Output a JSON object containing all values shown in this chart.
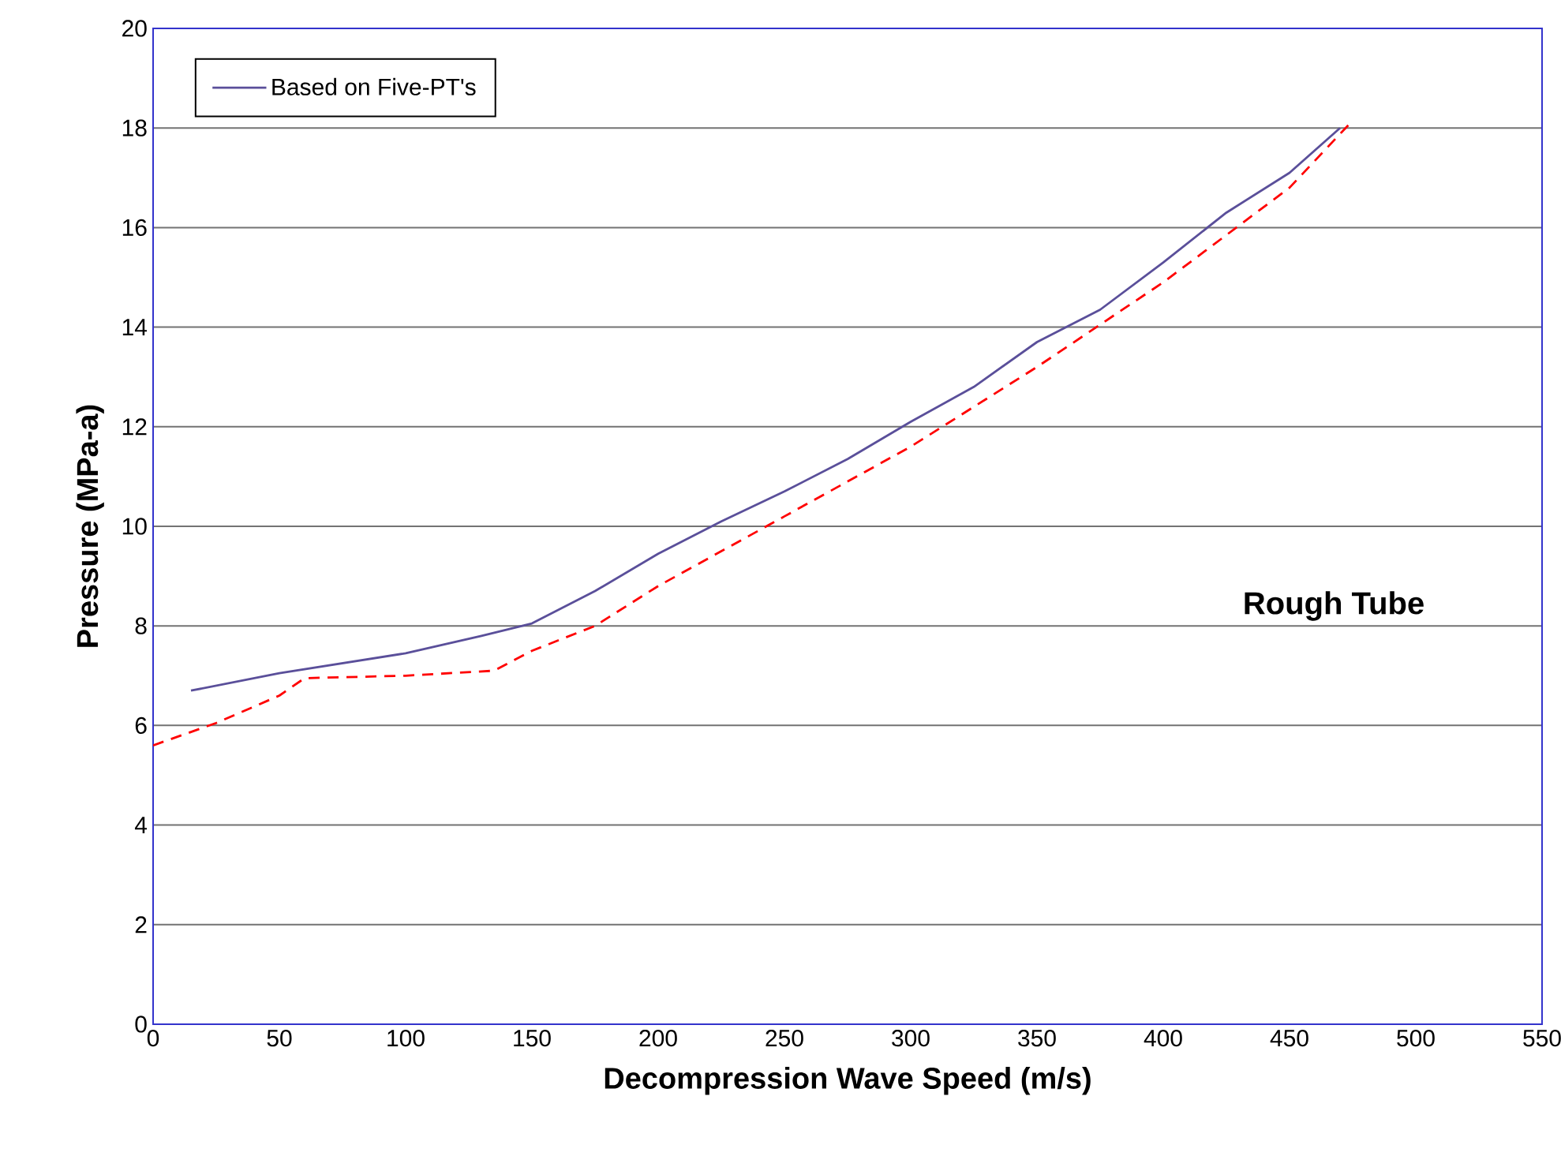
{
  "chart_data": {
    "type": "line",
    "xlabel": "Decompression Wave Speed  (m/s)",
    "ylabel": "Pressure (MPa-a)",
    "annotations": [
      "Rough Tube"
    ],
    "xlim": [
      0,
      550
    ],
    "xticks": [
      0,
      50,
      100,
      150,
      200,
      250,
      300,
      350,
      400,
      450,
      500,
      550
    ],
    "ylim": [
      0,
      20
    ],
    "yticks": [
      0,
      2,
      4,
      6,
      8,
      10,
      12,
      14,
      16,
      18,
      20
    ],
    "grid": "y",
    "legend": "top left",
    "marker": "none",
    "series": [
      {
        "name": "Based on Five-PT's",
        "color": "#5a4f9a",
        "line_style": "solid",
        "x": [
          15,
          50,
          75,
          100,
          130,
          150,
          175,
          200,
          225,
          250,
          275,
          300,
          325,
          350,
          375,
          400,
          425,
          450,
          470
        ],
        "values": [
          6.7,
          7.05,
          7.25,
          7.45,
          7.8,
          8.05,
          8.7,
          9.45,
          10.1,
          10.7,
          11.35,
          12.1,
          12.8,
          13.7,
          14.35,
          15.3,
          16.3,
          17.1,
          18.0
        ]
      },
      {
        "color": "#ff0000",
        "line_style": "dashed",
        "x": [
          0,
          25,
          50,
          60,
          100,
          135,
          150,
          175,
          200,
          250,
          300,
          350,
          400,
          450,
          475
        ],
        "values": [
          5.6,
          6.05,
          6.6,
          6.95,
          7.0,
          7.1,
          7.5,
          8.0,
          8.8,
          10.2,
          11.6,
          13.2,
          14.9,
          16.8,
          18.15
        ]
      }
    ]
  }
}
